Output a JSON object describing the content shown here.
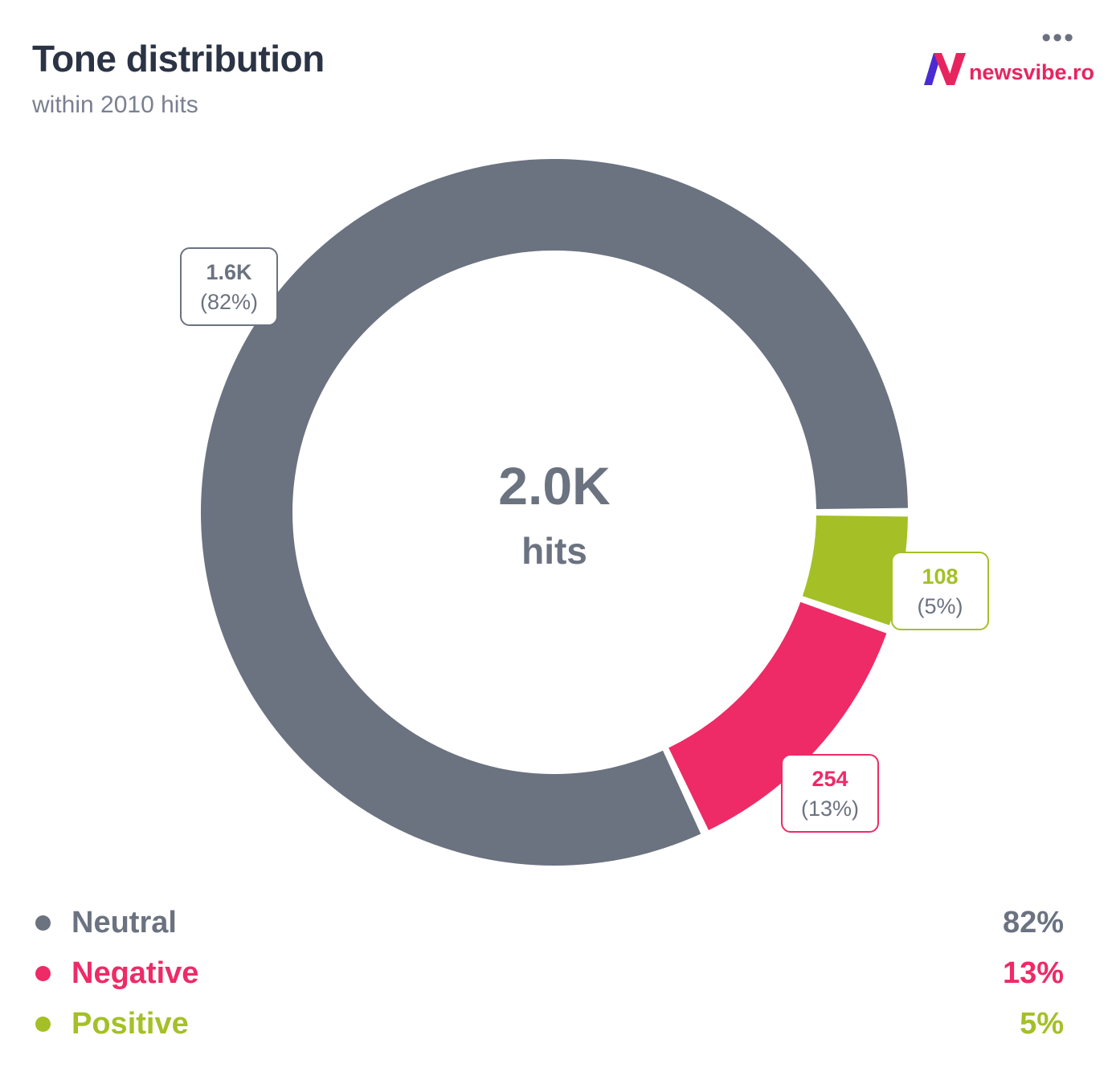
{
  "header": {
    "title": "Tone distribution",
    "subtitle": "within 2010 hits",
    "menu_glyph": "•••"
  },
  "brand": {
    "name": "newsvibe.ro",
    "icon": "newsvibe-logo-n-icon",
    "colors": {
      "purple": "#4a2bd1",
      "pink": "#e8245f"
    }
  },
  "center": {
    "value": "2.0K",
    "unit": "hits"
  },
  "chart_data": {
    "type": "pie",
    "donut": true,
    "title": "Tone distribution",
    "subtitle": "within 2010 hits",
    "total": 2010,
    "series": [
      {
        "name": "Neutral",
        "value": 1648,
        "display_value": "1.6K",
        "percent": 82,
        "percent_label": "(82%)",
        "color": "#6b7280"
      },
      {
        "name": "Negative",
        "value": 254,
        "display_value": "254",
        "percent": 13,
        "percent_label": "(13%)",
        "color": "#ee2a67"
      },
      {
        "name": "Positive",
        "value": 108,
        "display_value": "108",
        "percent": 5,
        "percent_label": "(5%)",
        "color": "#a4c026"
      }
    ],
    "legend_position": "bottom"
  },
  "legend": [
    {
      "label": "Neutral",
      "pct": "82%",
      "color": "#6b7280"
    },
    {
      "label": "Negative",
      "pct": "13%",
      "color": "#ee2a67"
    },
    {
      "label": "Positive",
      "pct": "5%",
      "color": "#a4c026"
    }
  ]
}
